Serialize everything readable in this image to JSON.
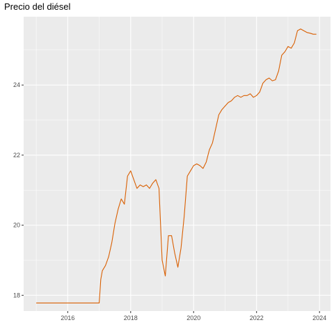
{
  "chart_data": {
    "type": "line",
    "title": "Precio del diésel",
    "xlabel": "",
    "ylabel": "",
    "xlim": [
      2014.6,
      2024.35
    ],
    "ylim": [
      17.55,
      25.95
    ],
    "xticks": [
      2016,
      2018,
      2020,
      2022,
      2024
    ],
    "yticks": [
      18,
      20,
      22,
      24
    ],
    "grid": true,
    "colors": {
      "panel": "#ebebeb",
      "grid_major": "#ffffff",
      "line": "#d95f02",
      "tick_text": "#4d4d4d"
    },
    "series": [
      {
        "x": [
          2015.0,
          2015.5,
          2016.0,
          2016.5,
          2017.0,
          2017.05,
          2017.1,
          2017.2,
          2017.3,
          2017.4,
          2017.5,
          2017.6,
          2017.7,
          2017.8,
          2017.9,
          2018.0,
          2018.1,
          2018.2,
          2018.3,
          2018.4,
          2018.5,
          2018.6,
          2018.7,
          2018.8,
          2018.9,
          2019.0,
          2019.1,
          2019.2,
          2019.3,
          2019.4,
          2019.5,
          2019.6,
          2019.7,
          2019.8,
          2019.9,
          2020.0,
          2020.1,
          2020.2,
          2020.3,
          2020.4,
          2020.5,
          2020.6,
          2020.7,
          2020.8,
          2020.9,
          2021.0,
          2021.1,
          2021.2,
          2021.3,
          2021.4,
          2021.5,
          2021.6,
          2021.7,
          2021.8,
          2021.9,
          2022.0,
          2022.1,
          2022.2,
          2022.3,
          2022.4,
          2022.5,
          2022.6,
          2022.7,
          2022.8,
          2022.9,
          2023.0,
          2023.1,
          2023.2,
          2023.3,
          2023.4,
          2023.5,
          2023.6,
          2023.7,
          2023.8,
          2023.9
        ],
        "y": [
          17.78,
          17.78,
          17.78,
          17.78,
          17.78,
          18.45,
          18.7,
          18.85,
          19.1,
          19.5,
          20.05,
          20.45,
          20.75,
          20.6,
          21.4,
          21.55,
          21.3,
          21.05,
          21.15,
          21.1,
          21.15,
          21.05,
          21.2,
          21.3,
          21.05,
          19.0,
          18.55,
          19.7,
          19.7,
          19.2,
          18.8,
          19.35,
          20.25,
          21.4,
          21.55,
          21.7,
          21.75,
          21.7,
          21.62,
          21.8,
          22.15,
          22.35,
          22.75,
          23.15,
          23.3,
          23.4,
          23.5,
          23.55,
          23.65,
          23.7,
          23.65,
          23.7,
          23.7,
          23.75,
          23.65,
          23.7,
          23.8,
          24.05,
          24.15,
          24.2,
          24.12,
          24.15,
          24.4,
          24.85,
          24.95,
          25.1,
          25.05,
          25.2,
          25.55,
          25.6,
          25.55,
          25.5,
          25.48,
          25.45,
          25.45
        ]
      }
    ]
  }
}
